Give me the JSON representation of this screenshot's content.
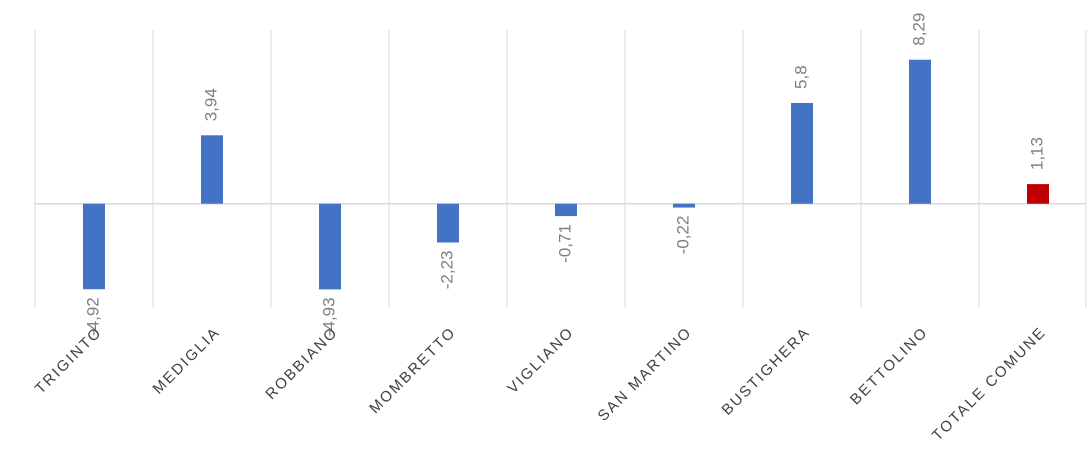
{
  "chart_data": {
    "type": "bar",
    "categories": [
      "TRIGINTO",
      "MEDIGLIA",
      "ROBBIANO",
      "MOMBRETTO",
      "VIGLIANO",
      "SAN MARTINO",
      "BUSTIGHERA",
      "BETTOLINO",
      "TOTALE COMUNE"
    ],
    "values": [
      -4.92,
      3.94,
      -4.93,
      -2.23,
      -0.71,
      -0.22,
      5.8,
      8.29,
      1.13
    ],
    "value_labels": [
      "-4,92",
      "3,94",
      "-4,93",
      "-2,23",
      "-0,71",
      "-0,22",
      "5,8",
      "8,29",
      "1,13"
    ],
    "colors": [
      "#4472c4",
      "#4472c4",
      "#4472c4",
      "#4472c4",
      "#4472c4",
      "#4472c4",
      "#4472c4",
      "#4472c4",
      "#c00000"
    ],
    "ylim": [
      -6,
      10
    ]
  }
}
